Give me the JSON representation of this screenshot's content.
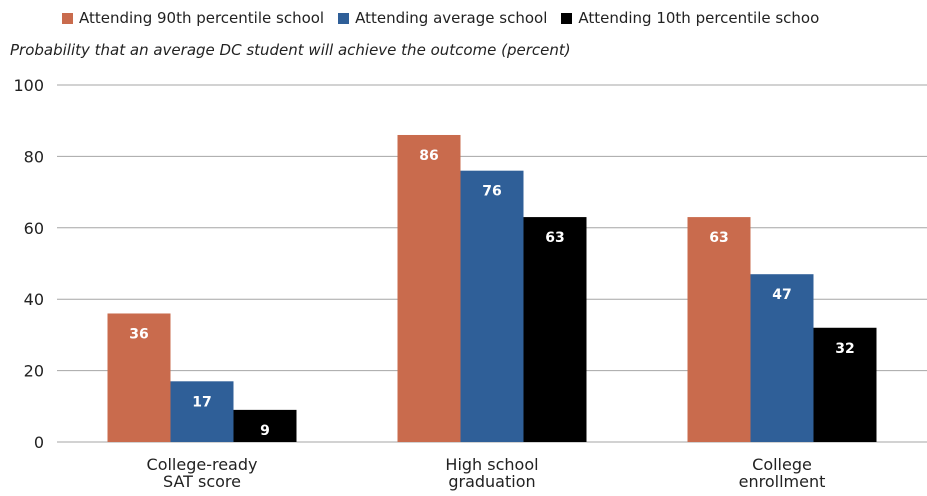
{
  "chart_data": {
    "type": "bar",
    "subtitle": "Probability that an average DC student will achieve the outcome (percent)",
    "categories": [
      [
        "College-ready",
        "SAT score"
      ],
      [
        "High school",
        "graduation"
      ],
      [
        "College",
        "enrollment"
      ]
    ],
    "series": [
      {
        "name": "Attending 90th percentile school",
        "color": "#c96b4d",
        "values": [
          36,
          86,
          63
        ]
      },
      {
        "name": "Attending average school",
        "color": "#2f5f98",
        "values": [
          17,
          76,
          47
        ]
      },
      {
        "name": "Attending 10th percentile schoo",
        "color": "#000000",
        "values": [
          9,
          63,
          32
        ]
      }
    ],
    "ylim": [
      0,
      100
    ],
    "yticks": [
      0,
      20,
      40,
      60,
      80,
      100
    ],
    "grid": true,
    "legend_position": "top"
  }
}
